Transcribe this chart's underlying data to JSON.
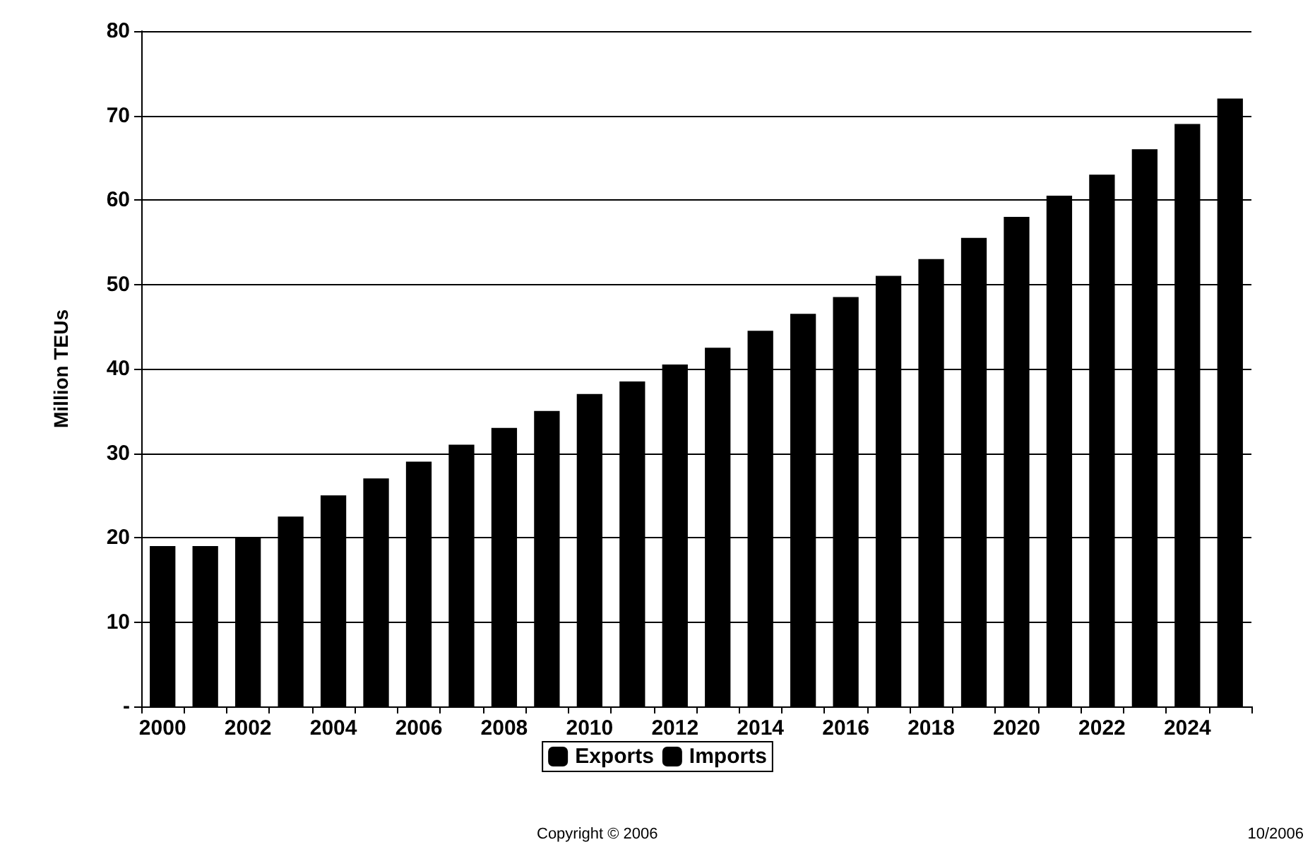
{
  "chart_data": {
    "type": "bar",
    "ylabel": "Million TEUs",
    "categories": [
      "2000",
      null,
      "2002",
      null,
      "2004",
      null,
      "2006",
      null,
      "2008",
      null,
      "2010",
      null,
      "2012",
      null,
      "2014",
      null,
      "2016",
      null,
      "2018",
      null,
      "2020",
      null,
      "2022",
      null,
      "2024",
      null
    ],
    "series": [
      {
        "name": "Exports",
        "color": "#000000",
        "values": [
          null,
          null,
          null,
          null,
          null,
          null,
          null,
          null,
          null,
          null,
          null,
          null,
          null,
          null,
          null,
          null,
          null,
          null,
          null,
          null,
          null,
          null,
          null,
          null,
          null,
          null
        ]
      },
      {
        "name": "Imports",
        "color": "#000000",
        "values": [
          19,
          19,
          20,
          22.5,
          25,
          27,
          29,
          31,
          33,
          35,
          37,
          38.5,
          40.5,
          42.5,
          44.5,
          46.5,
          48.5,
          51,
          53,
          55.5,
          58,
          60.5,
          63,
          66,
          69,
          72
        ]
      }
    ],
    "stacked": true,
    "ylim": [
      0,
      80
    ],
    "yticks": [
      {
        "value": 0,
        "label": "-"
      },
      10,
      20,
      30,
      40,
      50,
      60,
      70,
      80
    ],
    "grid": "y",
    "legend": "bottom",
    "annotations": [
      "Copyright © 2006",
      "10/2006"
    ]
  }
}
